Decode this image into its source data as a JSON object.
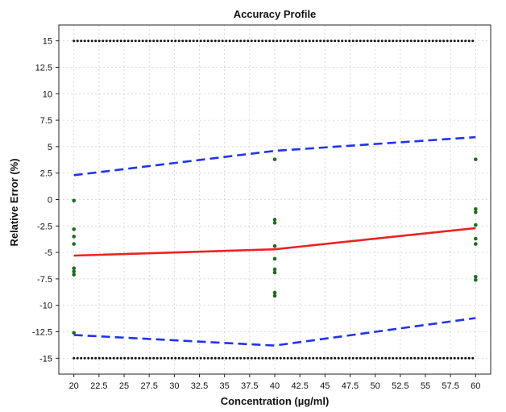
{
  "chart_data": {
    "type": "line",
    "title": "Accuracy Profile",
    "xlabel": "Concentration (µg/ml)",
    "ylabel": "Relative Error (%)",
    "xlim": [
      18.5,
      61.5
    ],
    "ylim": [
      -16.5,
      16.5
    ],
    "xticks": [
      "20",
      "22.5",
      "25",
      "27.5",
      "30",
      "32.5",
      "35",
      "37.5",
      "40",
      "42.5",
      "45",
      "47.5",
      "50",
      "52.5",
      "55",
      "57.5",
      "60"
    ],
    "yticks": [
      "15",
      "12.5",
      "10",
      "7.5",
      "5",
      "2.5",
      "0",
      "-2.5",
      "-5",
      "-7.5",
      "-10",
      "-12.5",
      "-15"
    ],
    "grid": true,
    "series": [
      {
        "role": "acceptance-upper",
        "style": "dotted",
        "color": "#111111",
        "x": [
          20,
          60
        ],
        "y": [
          15,
          15
        ]
      },
      {
        "role": "acceptance-lower",
        "style": "dotted",
        "color": "#111111",
        "x": [
          20,
          60
        ],
        "y": [
          -15,
          -15
        ]
      },
      {
        "role": "tolerance-upper",
        "style": "dashed",
        "color": "#2233ee",
        "x": [
          20,
          40,
          60
        ],
        "y": [
          2.3,
          4.6,
          5.9
        ]
      },
      {
        "role": "tolerance-lower",
        "style": "dashed",
        "color": "#2233ee",
        "x": [
          20,
          40,
          60
        ],
        "y": [
          -12.8,
          -13.8,
          -11.2
        ]
      },
      {
        "role": "mean-bias",
        "style": "solid",
        "color": "#ee2222",
        "x": [
          20,
          40,
          60
        ],
        "y": [
          -5.3,
          -4.7,
          -2.7
        ]
      },
      {
        "role": "points",
        "style": "points",
        "color": "#1f6b1f",
        "points": [
          [
            20,
            -0.1
          ],
          [
            20,
            -2.8
          ],
          [
            20,
            -3.5
          ],
          [
            20,
            -4.2
          ],
          [
            20,
            -6.5
          ],
          [
            20,
            -6.8
          ],
          [
            20,
            -7.1
          ],
          [
            20,
            -12.6
          ],
          [
            40,
            3.8
          ],
          [
            40,
            -1.9
          ],
          [
            40,
            -2.2
          ],
          [
            40,
            -4.4
          ],
          [
            40,
            -5.6
          ],
          [
            40,
            -6.6
          ],
          [
            40,
            -6.9
          ],
          [
            40,
            -8.8
          ],
          [
            40,
            -9.1
          ],
          [
            60,
            3.8
          ],
          [
            60,
            -0.9
          ],
          [
            60,
            -1.2
          ],
          [
            60,
            -2.4
          ],
          [
            60,
            -3.7
          ],
          [
            60,
            -4.2
          ],
          [
            60,
            -7.3
          ],
          [
            60,
            -7.6
          ]
        ]
      }
    ]
  }
}
